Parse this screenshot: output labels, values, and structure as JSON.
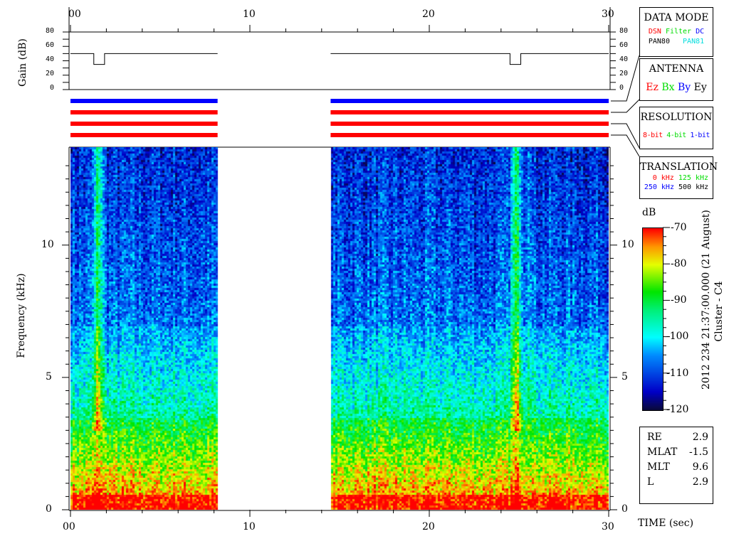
{
  "chart_data": {
    "type": "heatmap",
    "xlabel": "TIME (sec)",
    "ylabel": "Frequency (kHz)",
    "xlim": [
      0,
      30
    ],
    "ylim": [
      0,
      13.7
    ],
    "x_ticks": [
      "00",
      "10",
      "20",
      "30"
    ],
    "y_ticks": [
      "0",
      "5",
      "10"
    ],
    "data_gap_sec": [
      8.2,
      14.5
    ],
    "colorbar": {
      "label": "dB",
      "range": [
        -120,
        -70
      ],
      "ticks": [
        "-70",
        "-80",
        "-90",
        "-100",
        "-110",
        "-120"
      ]
    },
    "gain_panel": {
      "ylabel": "Gain (dB)",
      "ylim": [
        0,
        80
      ],
      "ticks": [
        "0",
        "20",
        "40",
        "60",
        "80"
      ],
      "series": [
        {
          "t": [
            0,
            1.3,
            1.3,
            1.9,
            1.9,
            8.2
          ],
          "gain": [
            50,
            50,
            35,
            35,
            50,
            50
          ]
        },
        {
          "t": [
            14.5,
            24.5,
            24.5,
            25.1,
            25.1,
            30
          ],
          "gain": [
            50,
            50,
            35,
            35,
            50,
            50
          ]
        }
      ]
    },
    "mode_bars": [
      {
        "color": "#0000ff"
      },
      {
        "color": "#ff0000"
      },
      {
        "color": "#ff0000"
      },
      {
        "color": "#ff0000"
      }
    ]
  },
  "title": "2012 234 21:37:00.000 (21 August)",
  "spacecraft": "Cluster - C4",
  "legend_boxes": {
    "data_mode": {
      "title": "DATA MODE",
      "items": [
        {
          "text": "DSN",
          "color": "#ff0000"
        },
        {
          "text": "Filter",
          "color": "#00e000"
        },
        {
          "text": "DC",
          "color": "#0000ff"
        },
        {
          "text": "PAN80",
          "color": "#000000"
        },
        {
          "text": "PAN81",
          "color": "#00e0e0"
        }
      ]
    },
    "antenna": {
      "title": "ANTENNA",
      "items": [
        {
          "text": "Ez",
          "color": "#ff0000"
        },
        {
          "text": "Bx",
          "color": "#00e000"
        },
        {
          "text": "By",
          "color": "#0000ff"
        },
        {
          "text": "Ey",
          "color": "#000000"
        }
      ]
    },
    "resolution": {
      "title": "RESOLUTION",
      "items": [
        {
          "text": "8-bit",
          "color": "#ff0000"
        },
        {
          "text": "4-bit",
          "color": "#00e000"
        },
        {
          "text": "1-bit",
          "color": "#0000ff"
        }
      ]
    },
    "translation": {
      "title": "TRANSLATION",
      "items": [
        {
          "text": "0 kHz",
          "color": "#ff0000"
        },
        {
          "text": "125 kHz",
          "color": "#00e000"
        },
        {
          "text": "250 kHz",
          "color": "#0000ff"
        },
        {
          "text": "500 kHz",
          "color": "#000000"
        }
      ]
    }
  },
  "info": [
    {
      "k": "RE",
      "v": "2.9"
    },
    {
      "k": "MLAT",
      "v": "-1.5"
    },
    {
      "k": "MLT",
      "v": "9.6"
    },
    {
      "k": "L",
      "v": "2.9"
    }
  ]
}
